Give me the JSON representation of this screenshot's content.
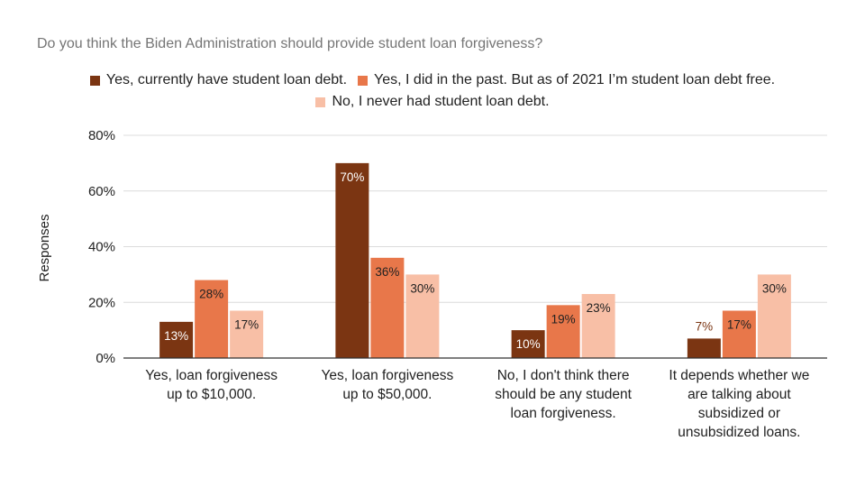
{
  "chart_data": {
    "type": "bar",
    "title": "Do you think the Biden Administration should provide student loan forgiveness?",
    "xlabel": "",
    "ylabel": "Responses",
    "ylim": [
      0,
      80
    ],
    "y_ticks": [
      "0%",
      "20%",
      "40%",
      "60%",
      "80%"
    ],
    "y_tick_values": [
      0,
      20,
      40,
      60,
      80
    ],
    "grid": true,
    "legend_position": "top",
    "categories": [
      [
        "Yes, loan forgiveness",
        "up to $10,000."
      ],
      [
        "Yes, loan forgiveness",
        "up to $50,000."
      ],
      [
        "No, I don't think there",
        "should be any student",
        "loan forgiveness."
      ],
      [
        "It depends whether we",
        "are talking about",
        "subsidized or",
        "unsubsidized loans."
      ]
    ],
    "series": [
      {
        "name": "Yes, currently have student loan debt.",
        "color": "#7b3512",
        "values": [
          13,
          70,
          10,
          7
        ],
        "labels": [
          "13%",
          "70%",
          "10%",
          "7%"
        ]
      },
      {
        "name": "Yes, I did in the past. But as of 2021 I’m student loan debt free.",
        "color": "#e8774a",
        "values": [
          28,
          36,
          19,
          17
        ],
        "labels": [
          "28%",
          "36%",
          "19%",
          "17%"
        ]
      },
      {
        "name": "No, I never had student loan debt.",
        "color": "#f8bfa6",
        "values": [
          17,
          30,
          23,
          30
        ],
        "labels": [
          "17%",
          "30%",
          "23%",
          "30%"
        ]
      }
    ]
  }
}
